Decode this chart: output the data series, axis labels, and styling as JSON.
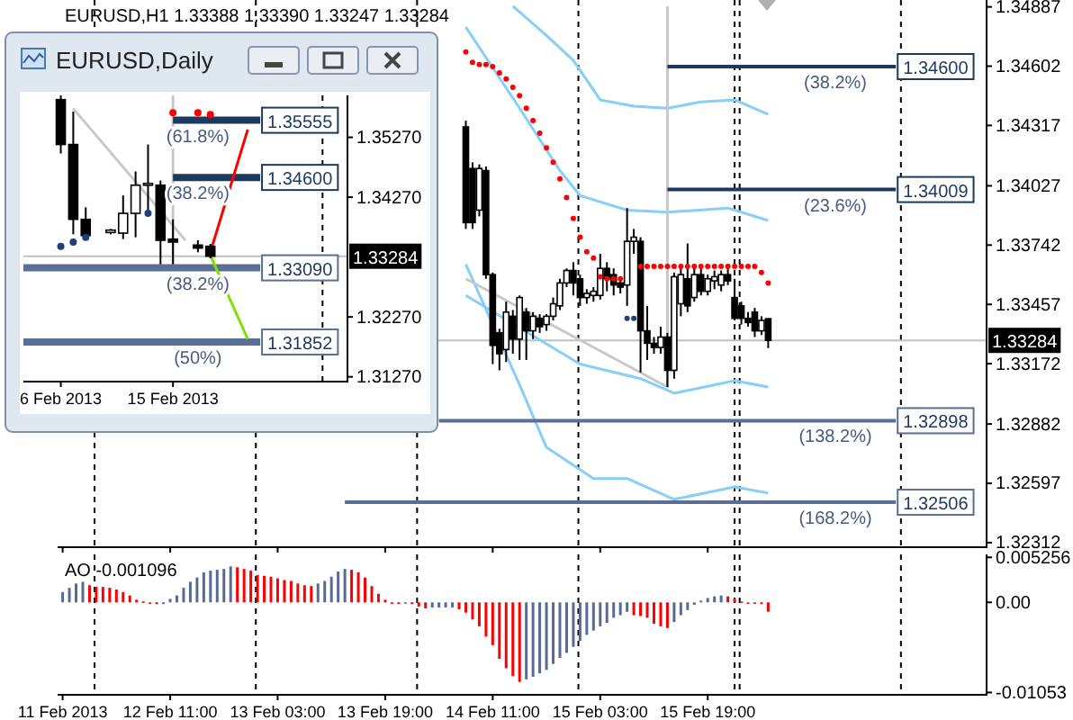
{
  "chart_data": [
    {
      "type": "candlestick",
      "title": "EURUSD,H1 1.33388 1.33390 1.33247 1.33284",
      "x": [
        "2013-02-14T07:00",
        "2013-02-14T08:00",
        "2013-02-14T09:00",
        "2013-02-14T10:00",
        "2013-02-14T11:00",
        "2013-02-14T12:00",
        "2013-02-14T13:00",
        "2013-02-14T14:00",
        "2013-02-14T15:00",
        "2013-02-14T16:00",
        "2013-02-14T17:00",
        "2013-02-14T18:00",
        "2013-02-14T19:00",
        "2013-02-14T20:00",
        "2013-02-14T21:00",
        "2013-02-14T22:00",
        "2013-02-14T23:00",
        "2013-02-15T00:00",
        "2013-02-15T01:00",
        "2013-02-15T02:00",
        "2013-02-15T03:00",
        "2013-02-15T04:00",
        "2013-02-15T05:00",
        "2013-02-15T06:00",
        "2013-02-15T07:00",
        "2013-02-15T08:00",
        "2013-02-15T09:00",
        "2013-02-15T10:00",
        "2013-02-15T11:00",
        "2013-02-15T12:00",
        "2013-02-15T13:00",
        "2013-02-15T14:00",
        "2013-02-15T15:00",
        "2013-02-15T16:00",
        "2013-02-15T17:00",
        "2013-02-15T18:00",
        "2013-02-15T19:00",
        "2013-02-15T20:00",
        "2013-02-15T21:00",
        "2013-02-15T22:00",
        "2013-02-15T23:00",
        "2013-02-16T00:00",
        "2013-02-16T01:00",
        "2013-02-16T02:00",
        "2013-02-16T03:00",
        "2013-02-16T04:00"
      ],
      "ohlc": [
        [
          1.3431,
          1.3434,
          1.3382,
          1.3385
        ],
        [
          1.3411,
          1.3414,
          1.3382,
          1.3385
        ],
        [
          1.3391,
          1.3413,
          1.3388,
          1.3411
        ],
        [
          1.341,
          1.3412,
          1.3358,
          1.336
        ],
        [
          1.336,
          1.3361,
          1.3317,
          1.3326
        ],
        [
          1.3332,
          1.3334,
          1.3314,
          1.3322
        ],
        [
          1.3324,
          1.3347,
          1.3318,
          1.3342
        ],
        [
          1.334,
          1.3343,
          1.3322,
          1.3329
        ],
        [
          1.3329,
          1.335,
          1.3319,
          1.3349
        ],
        [
          1.3342,
          1.3344,
          1.3319,
          1.3333
        ],
        [
          1.3333,
          1.3342,
          1.3329,
          1.334
        ],
        [
          1.3339,
          1.3341,
          1.3332,
          1.3335
        ],
        [
          1.3336,
          1.3341,
          1.3333,
          1.334
        ],
        [
          1.334,
          1.3349,
          1.3338,
          1.3346
        ],
        [
          1.3345,
          1.3358,
          1.3343,
          1.3356
        ],
        [
          1.3356,
          1.3363,
          1.3354,
          1.3362
        ],
        [
          1.3362,
          1.3366,
          1.335,
          1.3356
        ],
        [
          1.3358,
          1.336,
          1.3345,
          1.3349
        ],
        [
          1.3349,
          1.3353,
          1.3346,
          1.3351
        ],
        [
          1.335,
          1.3354,
          1.3347,
          1.3352
        ],
        [
          1.335,
          1.337,
          1.3348,
          1.3363
        ],
        [
          1.3363,
          1.3366,
          1.3352,
          1.3358
        ],
        [
          1.336,
          1.3363,
          1.335,
          1.3355
        ],
        [
          1.3356,
          1.3359,
          1.3351,
          1.3354
        ],
        [
          1.3355,
          1.3392,
          1.3345,
          1.3376
        ],
        [
          1.3376,
          1.3382,
          1.337,
          1.3378
        ],
        [
          1.3376,
          1.3378,
          1.3313,
          1.3333
        ],
        [
          1.3333,
          1.3345,
          1.3319,
          1.3327
        ],
        [
          1.3327,
          1.333,
          1.3322,
          1.3325
        ],
        [
          1.3325,
          1.3335,
          1.3322,
          1.333
        ],
        [
          1.333,
          1.3332,
          1.3306,
          1.3314
        ],
        [
          1.3314,
          1.3361,
          1.331,
          1.3359
        ],
        [
          1.3346,
          1.3365,
          1.334,
          1.336
        ],
        [
          1.3358,
          1.3375,
          1.3342,
          1.3345
        ],
        [
          1.3349,
          1.3365,
          1.3347,
          1.336
        ],
        [
          1.336,
          1.3363,
          1.335,
          1.3352
        ],
        [
          1.3352,
          1.336,
          1.335,
          1.3358
        ],
        [
          1.3357,
          1.3362,
          1.3353,
          1.3359
        ],
        [
          1.3355,
          1.3362,
          1.3352,
          1.336
        ],
        [
          1.336,
          1.3363,
          1.3355,
          1.3357
        ],
        [
          1.3349,
          1.3358,
          1.3338,
          1.3339
        ],
        [
          1.3345,
          1.3347,
          1.3336,
          1.3339
        ],
        [
          1.3339,
          1.3342,
          1.3335,
          1.3337
        ],
        [
          1.3342,
          1.3344,
          1.333,
          1.3333
        ],
        [
          1.3333,
          1.334,
          1.3331,
          1.3338
        ],
        [
          1.33388,
          1.3339,
          1.33247,
          1.33284
        ]
      ],
      "series": [
        {
          "type": "line",
          "color": "#87cefa",
          "x": [
            "2013-02-14T14:00",
            "2013-02-14T19:00",
            "2013-02-14T23:00",
            "2013-02-15T03:00",
            "2013-02-15T08:00",
            "2013-02-15T13:00",
            "2013-02-15T18:00",
            "2013-02-15T23:00",
            "2013-02-16T04:00"
          ],
          "values": [
            1.3489,
            1.3475,
            1.3463,
            1.3444,
            1.3441,
            1.344,
            1.3443,
            1.3444,
            1.3437
          ]
        },
        {
          "type": "line",
          "color": "#87cefa",
          "x": [
            "2013-02-14T07:00",
            "2013-02-14T15:00",
            "2013-02-14T21:00",
            "2013-02-15T00:00",
            "2013-02-15T07:00",
            "2013-02-15T13:00",
            "2013-02-15T22:00",
            "2013-02-16T04:00"
          ],
          "values": [
            1.3479,
            1.344,
            1.341,
            1.3398,
            1.3391,
            1.339,
            1.3392,
            1.3386
          ]
        },
        {
          "type": "line",
          "color": "#87cefa",
          "x": [
            "2013-02-14T07:00",
            "2013-02-15T00:00",
            "2013-02-15T09:00",
            "2013-02-15T14:00",
            "2013-02-15T23:00",
            "2013-02-16T04:00"
          ],
          "values": [
            1.335,
            1.3317,
            1.331,
            1.3303,
            1.3309,
            1.3306
          ]
        },
        {
          "type": "line",
          "color": "#87cefa",
          "x": [
            "2013-02-14T07:00",
            "2013-02-14T15:00",
            "2013-02-14T19:00",
            "2013-02-15T02:00",
            "2013-02-15T07:00",
            "2013-02-15T14:00",
            "2013-02-15T23:00",
            "2013-02-16T04:00"
          ],
          "values": [
            1.3365,
            1.3307,
            1.3277,
            1.3262,
            1.3262,
            1.3252,
            1.3258,
            1.3255
          ]
        },
        {
          "type": "line",
          "color": "#c8c8c8",
          "x": [
            "2013-02-14T07:00",
            "2013-02-15T13:00",
            "2013-02-15T13:00"
          ],
          "values": [
            1.3358,
            1.3306,
            1.3489
          ]
        },
        {
          "type": "line",
          "color": "#1c3a5e",
          "x": [
            "2013-02-15T13:00",
            "2013-02-16T23:00"
          ],
          "values": [
            1.346,
            1.346
          ],
          "value_labels": [
            null,
            "1.34600"
          ]
        },
        {
          "type": "line",
          "color": "#1c3a5e",
          "x": [
            "2013-02-15T13:00",
            "2013-02-16T23:00"
          ],
          "values": [
            1.34009,
            1.34009
          ],
          "value_labels": [
            null,
            "1.34009"
          ]
        },
        {
          "type": "line",
          "color": "#5a6e96",
          "x": [
            "2013-02-14T03:00",
            "2013-02-16T23:00"
          ],
          "values": [
            1.32898,
            1.32898
          ],
          "value_labels": [
            null,
            "1.32898"
          ]
        },
        {
          "type": "line",
          "color": "#5a6e96",
          "x": [
            "2013-02-13T13:00",
            "2013-02-16T23:00"
          ],
          "values": [
            1.32506,
            1.32506
          ],
          "value_labels": [
            null,
            "1.32506"
          ]
        },
        {
          "type": "scatter",
          "color": "#ff0000",
          "x": [
            "2013-02-14T07:00",
            "2013-02-14T08:00",
            "2013-02-14T09:00",
            "2013-02-14T10:00",
            "2013-02-14T11:00",
            "2013-02-14T12:00",
            "2013-02-14T13:00",
            "2013-02-14T14:00",
            "2013-02-14T15:00",
            "2013-02-14T16:00",
            "2013-02-14T17:00",
            "2013-02-14T18:00",
            "2013-02-14T19:00",
            "2013-02-14T20:00",
            "2013-02-14T21:00",
            "2013-02-14T22:00",
            "2013-02-14T23:00",
            "2013-02-15T00:00",
            "2013-02-15T01:00",
            "2013-02-15T02:00",
            "2013-02-15T03:00",
            "2013-02-15T04:00",
            "2013-02-15T05:00",
            "2013-02-15T06:00",
            "2013-02-15T09:00",
            "2013-02-15T10:00",
            "2013-02-15T11:00",
            "2013-02-15T12:00",
            "2013-02-15T13:00",
            "2013-02-15T14:00",
            "2013-02-15T15:00",
            "2013-02-15T16:00",
            "2013-02-15T17:00",
            "2013-02-15T18:00",
            "2013-02-15T19:00",
            "2013-02-15T20:00",
            "2013-02-15T21:00",
            "2013-02-15T22:00",
            "2013-02-15T23:00",
            "2013-02-16T00:00",
            "2013-02-16T01:00",
            "2013-02-16T02:00",
            "2013-02-16T03:00",
            "2013-02-16T04:00"
          ],
          "values": [
            1.3467,
            1.3462,
            1.3461,
            1.3461,
            1.346,
            1.3457,
            1.3454,
            1.345,
            1.3446,
            1.344,
            1.3434,
            1.3428,
            1.3421,
            1.3414,
            1.3406,
            1.3397,
            1.3387,
            1.3378,
            1.3371,
            1.3368,
            1.3359,
            1.3358,
            1.3358,
            1.3358,
            1.3364,
            1.3364,
            1.3364,
            1.3364,
            1.3364,
            1.3364,
            1.3364,
            1.3364,
            1.3364,
            1.3364,
            1.3364,
            1.3364,
            1.3364,
            1.3364,
            1.3364,
            1.3364,
            1.3364,
            1.3364,
            1.3361,
            1.3356
          ]
        },
        {
          "type": "scatter",
          "color": "#1f3f7a",
          "x": [
            "2013-02-15T07:00",
            "2013-02-15T08:00"
          ],
          "values": [
            1.3339,
            1.3339
          ]
        }
      ],
      "annotations": [
        {
          "text": "(38.2%)",
          "x": "2013-02-16T14:00",
          "y": 1.346
        },
        {
          "text": "(23.6%)",
          "x": "2013-02-16T14:00",
          "y": 1.34009
        },
        {
          "text": "(138.2%)",
          "x": "2013-02-16T14:00",
          "y": 1.32898
        },
        {
          "text": "(168.2%)",
          "x": "2013-02-16T14:00",
          "y": 1.32506
        }
      ],
      "ref_lines": [
        {
          "axis": "x",
          "value": "2013-02-11T23:45",
          "color": "#000000",
          "line_style": "dashed"
        },
        {
          "axis": "x",
          "value": "2013-02-12T23:45",
          "color": "#000000",
          "line_style": "dashed"
        },
        {
          "axis": "x",
          "value": "2013-02-13T23:45",
          "color": "#000000",
          "line_style": "dashed"
        },
        {
          "axis": "x",
          "value": "2013-02-14T23:45",
          "color": "#000000",
          "line_style": "dashed"
        },
        {
          "axis": "x",
          "value": "2013-02-15T23:00",
          "color": "#000000",
          "line_style": "dashed"
        },
        {
          "axis": "x",
          "value": "2013-02-15T23:45",
          "color": "#000000",
          "line_style": "dashed"
        },
        {
          "axis": "x",
          "value": "2013-02-16T23:45",
          "color": "#000000",
          "line_style": "dashed"
        },
        {
          "axis": "y",
          "value": 1.33284,
          "label": "1.33284",
          "color": "#c0c0c0",
          "line_style": "solid"
        }
      ],
      "xlim": [
        "2013-02-11T18:15",
        "2013-02-17T12:30"
      ],
      "ylim": [
        1.3229,
        1.3492
      ],
      "xticks": [
        {
          "value": "2013-02-11T19:00",
          "label": null
        },
        {
          "value": "2013-02-12T11:00",
          "label": null
        },
        {
          "value": "2013-02-13T03:00",
          "label": null
        },
        {
          "value": "2013-02-13T19:00",
          "label": null
        },
        {
          "value": "2013-02-14T11:00",
          "label": null
        },
        {
          "value": "2013-02-15T03:00",
          "label": null
        },
        {
          "value": "2013-02-15T19:00",
          "label": null
        }
      ],
      "yticks": [
        1.34887,
        1.34602,
        1.34317,
        1.34027,
        1.33742,
        1.33457,
        1.33172,
        1.32882,
        1.32597,
        1.32312
      ],
      "tick_labels": "y"
    },
    {
      "type": "candlestick",
      "title": "EURUSD,Daily",
      "x": [
        "2013-02-06",
        "2013-02-07",
        "2013-02-08",
        "2013-02-10",
        "2013-02-11",
        "2013-02-12",
        "2013-02-13",
        "2013-02-14",
        "2013-02-15",
        "2013-02-17",
        "2013-02-18"
      ],
      "ohlc": [
        [
          1.359,
          1.3597,
          1.35,
          1.3515
        ],
        [
          1.3515,
          1.357,
          1.3365,
          1.339
        ],
        [
          1.339,
          1.341,
          1.336,
          1.3363
        ],
        [
          1.3368,
          1.3374,
          1.3365,
          1.3372
        ],
        [
          1.3367,
          1.343,
          1.3357,
          1.34
        ],
        [
          1.34,
          1.347,
          1.336,
          1.3447
        ],
        [
          1.3447,
          1.3515,
          1.3405,
          1.345
        ],
        [
          1.3447,
          1.3455,
          1.3315,
          1.3355
        ],
        [
          1.3357,
          1.339,
          1.3315,
          1.3352
        ],
        [
          1.3347,
          1.3355,
          1.3335,
          1.3342
        ],
        [
          1.3345,
          1.3349,
          1.3325,
          1.33284
        ]
      ],
      "series": [
        {
          "type": "line",
          "color": "#c8c8c8",
          "x": [
            "2013-02-07",
            "2013-02-16"
          ],
          "values": [
            1.3575,
            1.3355
          ]
        },
        {
          "type": "line",
          "color": "#c8c8c8",
          "x": [
            "2013-02-15",
            "2013-02-15"
          ],
          "values": [
            1.3597,
            1.3315
          ]
        },
        {
          "type": "line",
          "color": "#1c3a5e",
          "x": [
            "2013-02-15",
            "2013-02-22"
          ],
          "values": [
            1.35555,
            1.35555
          ],
          "value_labels": [
            null,
            "1.35555"
          ]
        },
        {
          "type": "line",
          "color": "#1c3a5e",
          "x": [
            "2013-02-15",
            "2013-02-22"
          ],
          "values": [
            1.346,
            1.346
          ],
          "value_labels": [
            null,
            "1.34600"
          ]
        },
        {
          "type": "line",
          "color": "#5a6e96",
          "x": [
            "2013-02-03",
            "2013-02-22"
          ],
          "values": [
            1.3309,
            1.3309
          ],
          "value_labels": [
            null,
            "1.33090"
          ]
        },
        {
          "type": "line",
          "color": "#5a6e96",
          "x": [
            "2013-02-03",
            "2013-02-22"
          ],
          "values": [
            1.31852,
            1.31852
          ],
          "value_labels": [
            null,
            "1.31852"
          ]
        },
        {
          "type": "line",
          "color": "#ff0000",
          "x": [
            "2013-02-18",
            "2013-02-21"
          ],
          "values": [
            1.3335,
            1.354
          ]
        },
        {
          "type": "line",
          "color": "#80e000",
          "x": [
            "2013-02-18",
            "2013-02-21"
          ],
          "values": [
            1.333,
            1.319
          ]
        },
        {
          "type": "scatter",
          "color": "#ff0000",
          "x": [
            "2013-02-15",
            "2013-02-17",
            "2013-02-18"
          ],
          "values": [
            1.3568,
            1.3568,
            1.3565
          ]
        },
        {
          "type": "scatter",
          "color": "#1f3f7a",
          "x": [
            "2013-02-06",
            "2013-02-07",
            "2013-02-08",
            "2013-02-13"
          ],
          "values": [
            1.3345,
            1.3352,
            1.336,
            1.34
          ]
        }
      ],
      "annotations": [
        {
          "text": "(61.8%)",
          "x": "2013-02-17",
          "y": 1.35555
        },
        {
          "text": "(38.2%)",
          "x": "2013-02-17",
          "y": 1.346
        },
        {
          "text": "(38.2%)",
          "x": "2013-02-17",
          "y": 1.3309
        },
        {
          "text": "(50%)",
          "x": "2013-02-17",
          "y": 1.31852
        }
      ],
      "ref_lines": [
        {
          "axis": "x",
          "value": "2013-02-27",
          "color": "#000000",
          "line_style": "dashed"
        },
        {
          "axis": "y",
          "value": 1.33284,
          "label": "1.33284",
          "color": "#c0c0c0",
          "line_style": "solid"
        }
      ],
      "xlim": [
        "2013-02-03",
        "2013-03-01"
      ],
      "ylim": [
        1.3119,
        1.3597
      ],
      "xticks": [
        {
          "value": "2013-02-06",
          "label": "6 Feb 2013"
        },
        {
          "value": "2013-02-15",
          "label": "15 Feb 2013"
        }
      ],
      "yticks": [
        {
          "value": 1.3527,
          "label": "1.35270"
        },
        {
          "value": 1.3427,
          "label": "1.34270"
        },
        {
          "value": 1.3227,
          "label": "1.32270"
        },
        {
          "value": 1.3127,
          "label": "1.31270"
        }
      ]
    },
    {
      "type": "bar",
      "title": "AO -0.001096",
      "x": [
        "2013-02-11T19:00",
        "2013-02-11T20:00",
        "2013-02-11T21:00",
        "2013-02-11T22:00",
        "2013-02-11T23:00",
        "2013-02-12T00:00",
        "2013-02-12T01:00",
        "2013-02-12T02:00",
        "2013-02-12T03:00",
        "2013-02-12T04:00",
        "2013-02-12T05:00",
        "2013-02-12T06:00",
        "2013-02-12T07:00",
        "2013-02-12T08:00",
        "2013-02-12T09:00",
        "2013-02-12T10:00",
        "2013-02-12T11:00",
        "2013-02-12T12:00",
        "2013-02-12T13:00",
        "2013-02-12T14:00",
        "2013-02-12T15:00",
        "2013-02-12T16:00",
        "2013-02-12T17:00",
        "2013-02-12T18:00",
        "2013-02-12T19:00",
        "2013-02-12T20:00",
        "2013-02-12T21:00",
        "2013-02-12T22:00",
        "2013-02-12T23:00",
        "2013-02-13T00:00",
        "2013-02-13T01:00",
        "2013-02-13T02:00",
        "2013-02-13T03:00",
        "2013-02-13T04:00",
        "2013-02-13T05:00",
        "2013-02-13T06:00",
        "2013-02-13T07:00",
        "2013-02-13T08:00",
        "2013-02-13T09:00",
        "2013-02-13T10:00",
        "2013-02-13T11:00",
        "2013-02-13T12:00",
        "2013-02-13T13:00",
        "2013-02-13T14:00",
        "2013-02-13T15:00",
        "2013-02-13T16:00",
        "2013-02-13T17:00",
        "2013-02-13T18:00",
        "2013-02-13T19:00",
        "2013-02-13T20:00",
        "2013-02-13T21:00",
        "2013-02-13T22:00",
        "2013-02-13T23:00",
        "2013-02-14T00:00",
        "2013-02-14T01:00",
        "2013-02-14T02:00",
        "2013-02-14T03:00",
        "2013-02-14T04:00",
        "2013-02-14T05:00",
        "2013-02-14T06:00",
        "2013-02-14T07:00",
        "2013-02-14T08:00",
        "2013-02-14T09:00",
        "2013-02-14T10:00",
        "2013-02-14T11:00",
        "2013-02-14T12:00",
        "2013-02-14T13:00",
        "2013-02-14T14:00",
        "2013-02-14T15:00",
        "2013-02-14T16:00",
        "2013-02-14T17:00",
        "2013-02-14T18:00",
        "2013-02-14T19:00",
        "2013-02-14T20:00",
        "2013-02-14T21:00",
        "2013-02-14T22:00",
        "2013-02-14T23:00",
        "2013-02-15T00:00",
        "2013-02-15T01:00",
        "2013-02-15T02:00",
        "2013-02-15T03:00",
        "2013-02-15T04:00",
        "2013-02-15T05:00",
        "2013-02-15T06:00",
        "2013-02-15T07:00",
        "2013-02-15T08:00",
        "2013-02-15T09:00",
        "2013-02-15T10:00",
        "2013-02-15T11:00",
        "2013-02-15T12:00",
        "2013-02-15T13:00",
        "2013-02-15T14:00",
        "2013-02-15T15:00",
        "2013-02-15T16:00",
        "2013-02-15T17:00",
        "2013-02-15T18:00",
        "2013-02-15T19:00",
        "2013-02-15T20:00",
        "2013-02-15T21:00",
        "2013-02-15T22:00",
        "2013-02-15T23:00",
        "2013-02-16T00:00",
        "2013-02-16T01:00",
        "2013-02-16T02:00",
        "2013-02-16T03:00",
        "2013-02-16T04:00"
      ],
      "values": [
        0.0012,
        0.0017,
        0.0022,
        0.0024,
        0.002,
        0.0018,
        0.0018,
        0.0017,
        0.0015,
        0.0012,
        0.0008,
        0.0003,
        0.0001,
        0.0,
        -0.0002,
        -0.0002,
        0.0004,
        0.0008,
        0.0017,
        0.0024,
        0.0029,
        0.0035,
        0.0037,
        0.0038,
        0.0039,
        0.0042,
        0.0041,
        0.0039,
        0.0037,
        0.0032,
        0.0031,
        0.003,
        0.0028,
        0.0026,
        0.0025,
        0.0022,
        0.002,
        0.0019,
        0.0022,
        0.0025,
        0.003,
        0.0036,
        0.0039,
        0.0038,
        0.0035,
        0.0029,
        0.0019,
        0.001,
        0.0003,
        0.0,
        -0.0002,
        -0.0001,
        -0.0002,
        -0.0005,
        -0.0007,
        -0.0006,
        -0.0006,
        -0.0006,
        -0.0006,
        -0.0008,
        -0.0012,
        -0.002,
        -0.0028,
        -0.004,
        -0.005,
        -0.0066,
        -0.0077,
        -0.0086,
        -0.0093,
        -0.009,
        -0.0087,
        -0.0083,
        -0.0079,
        -0.0072,
        -0.0065,
        -0.0059,
        -0.0052,
        -0.0045,
        -0.0038,
        -0.0033,
        -0.0028,
        -0.0024,
        -0.0018,
        -0.0015,
        -0.0011,
        -0.0015,
        -0.0016,
        -0.0018,
        -0.0025,
        -0.0028,
        -0.003,
        -0.0023,
        -0.0015,
        -0.0009,
        -0.0003,
        0.0002,
        0.0005,
        0.0007,
        0.0008,
        0.0007,
        0.0004,
        0.0001,
        -0.0001,
        -0.0001,
        -0.0002,
        -0.001096
      ],
      "colors": [
        "#5a6a96",
        "#5a6a96",
        "#5a6a96",
        "#5a6a96",
        "#ff0000",
        "#ff0000",
        "#ff0000",
        "#ff0000",
        "#ff0000",
        "#ff0000",
        "#ff0000",
        "#ff0000",
        "#ff0000",
        "#ff0000",
        "#ff0000",
        "#5a6a96",
        "#5a6a96",
        "#5a6a96",
        "#5a6a96",
        "#5a6a96",
        "#5a6a96",
        "#5a6a96",
        "#5a6a96",
        "#5a6a96",
        "#5a6a96",
        "#5a6a96",
        "#ff0000",
        "#ff0000",
        "#ff0000",
        "#ff0000",
        "#ff0000",
        "#ff0000",
        "#ff0000",
        "#ff0000",
        "#ff0000",
        "#ff0000",
        "#ff0000",
        "#ff0000",
        "#5a6a96",
        "#5a6a96",
        "#5a6a96",
        "#5a6a96",
        "#5a6a96",
        "#ff0000",
        "#ff0000",
        "#ff0000",
        "#ff0000",
        "#ff0000",
        "#ff0000",
        "#ff0000",
        "#ff0000",
        "#5a6a96",
        "#ff0000",
        "#ff0000",
        "#ff0000",
        "#5a6a96",
        "#5a6a96",
        "#5a6a96",
        "#5a6a96",
        "#ff0000",
        "#ff0000",
        "#ff0000",
        "#ff0000",
        "#ff0000",
        "#ff0000",
        "#ff0000",
        "#ff0000",
        "#ff0000",
        "#ff0000",
        "#5a6a96",
        "#5a6a96",
        "#5a6a96",
        "#5a6a96",
        "#5a6a96",
        "#5a6a96",
        "#5a6a96",
        "#5a6a96",
        "#5a6a96",
        "#5a6a96",
        "#5a6a96",
        "#5a6a96",
        "#5a6a96",
        "#5a6a96",
        "#5a6a96",
        "#5a6a96",
        "#ff0000",
        "#ff0000",
        "#ff0000",
        "#ff0000",
        "#ff0000",
        "#ff0000",
        "#5a6a96",
        "#5a6a96",
        "#5a6a96",
        "#5a6a96",
        "#5a6a96",
        "#5a6a96",
        "#5a6a96",
        "#5a6a96",
        "#ff0000",
        "#ff0000",
        "#ff0000",
        "#ff0000",
        "#ff0000",
        "#ff0000",
        "#ff0000"
      ],
      "ref_lines": [
        {
          "axis": "x",
          "value": "2013-02-11T23:45",
          "color": "#000000",
          "line_style": "dashed"
        },
        {
          "axis": "x",
          "value": "2013-02-12T23:45",
          "color": "#000000",
          "line_style": "dashed"
        },
        {
          "axis": "x",
          "value": "2013-02-13T23:45",
          "color": "#000000",
          "line_style": "dashed"
        },
        {
          "axis": "x",
          "value": "2013-02-14T23:45",
          "color": "#000000",
          "line_style": "dashed"
        },
        {
          "axis": "x",
          "value": "2013-02-15T23:00",
          "color": "#000000",
          "line_style": "dashed"
        },
        {
          "axis": "x",
          "value": "2013-02-15T23:45",
          "color": "#000000",
          "line_style": "dashed"
        },
        {
          "axis": "x",
          "value": "2013-02-16T23:45",
          "color": "#000000",
          "line_style": "dashed"
        }
      ],
      "xlim": [
        "2013-02-11T18:15",
        "2013-02-17T12:30"
      ],
      "ylim": [
        -0.0108,
        0.0056
      ],
      "xticks": [
        {
          "value": "2013-02-11T19:00",
          "label": "11 Feb 2013"
        },
        {
          "value": "2013-02-12T11:00",
          "label": "12 Feb 11:00"
        },
        {
          "value": "2013-02-13T03:00",
          "label": "13 Feb 03:00"
        },
        {
          "value": "2013-02-13T19:00",
          "label": "13 Feb 19:00"
        },
        {
          "value": "2013-02-14T11:00",
          "label": "14 Feb 11:00"
        },
        {
          "value": "2013-02-15T03:00",
          "label": "15 Feb 03:00"
        },
        {
          "value": "2013-02-15T19:00",
          "label": "15 Feb 19:00"
        }
      ],
      "yticks": [
        0.005256,
        {
          "value": 0,
          "label": "0.00"
        },
        -0.01053
      ]
    }
  ]
}
